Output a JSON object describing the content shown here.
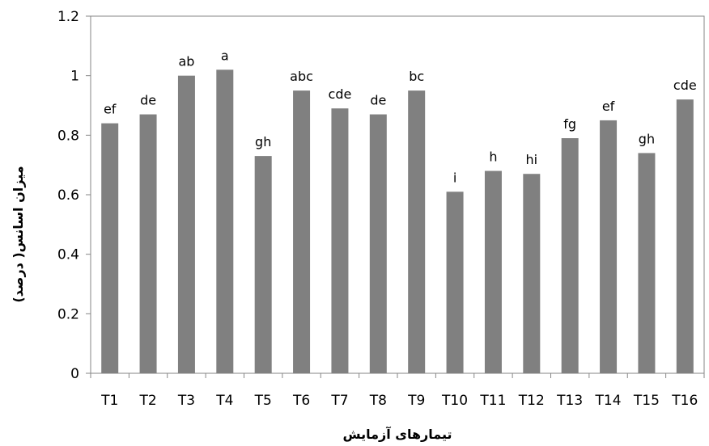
{
  "chart_data": {
    "type": "bar",
    "categories": [
      "T1",
      "T2",
      "T3",
      "T4",
      "T5",
      "T6",
      "T7",
      "T8",
      "T9",
      "T10",
      "T11",
      "T12",
      "T13",
      "T14",
      "T15",
      "T16"
    ],
    "values": [
      0.84,
      0.87,
      1.0,
      1.02,
      0.73,
      0.95,
      0.89,
      0.87,
      0.95,
      0.61,
      0.68,
      0.67,
      0.79,
      0.85,
      0.74,
      0.92
    ],
    "data_labels": [
      "ef",
      "de",
      "ab",
      "a",
      "gh",
      "abc",
      "cde",
      "de",
      "bc",
      "i",
      "h",
      "hi",
      "fg",
      "ef",
      "gh",
      "cde"
    ],
    "title": "",
    "xlabel": "تیمارهای آزمایش",
    "ylabel": "میزان اسانس( درصد)",
    "ylim": [
      0,
      1.2
    ],
    "yticks": [
      0,
      0.2,
      0.4,
      0.6,
      0.8,
      1,
      1.2
    ],
    "ytick_labels": [
      "0",
      "0.2",
      "0.4",
      "0.6",
      "0.8",
      "1",
      "1.2"
    ],
    "bar_color": "#808080",
    "axis_color": "#868686",
    "grid": false
  }
}
